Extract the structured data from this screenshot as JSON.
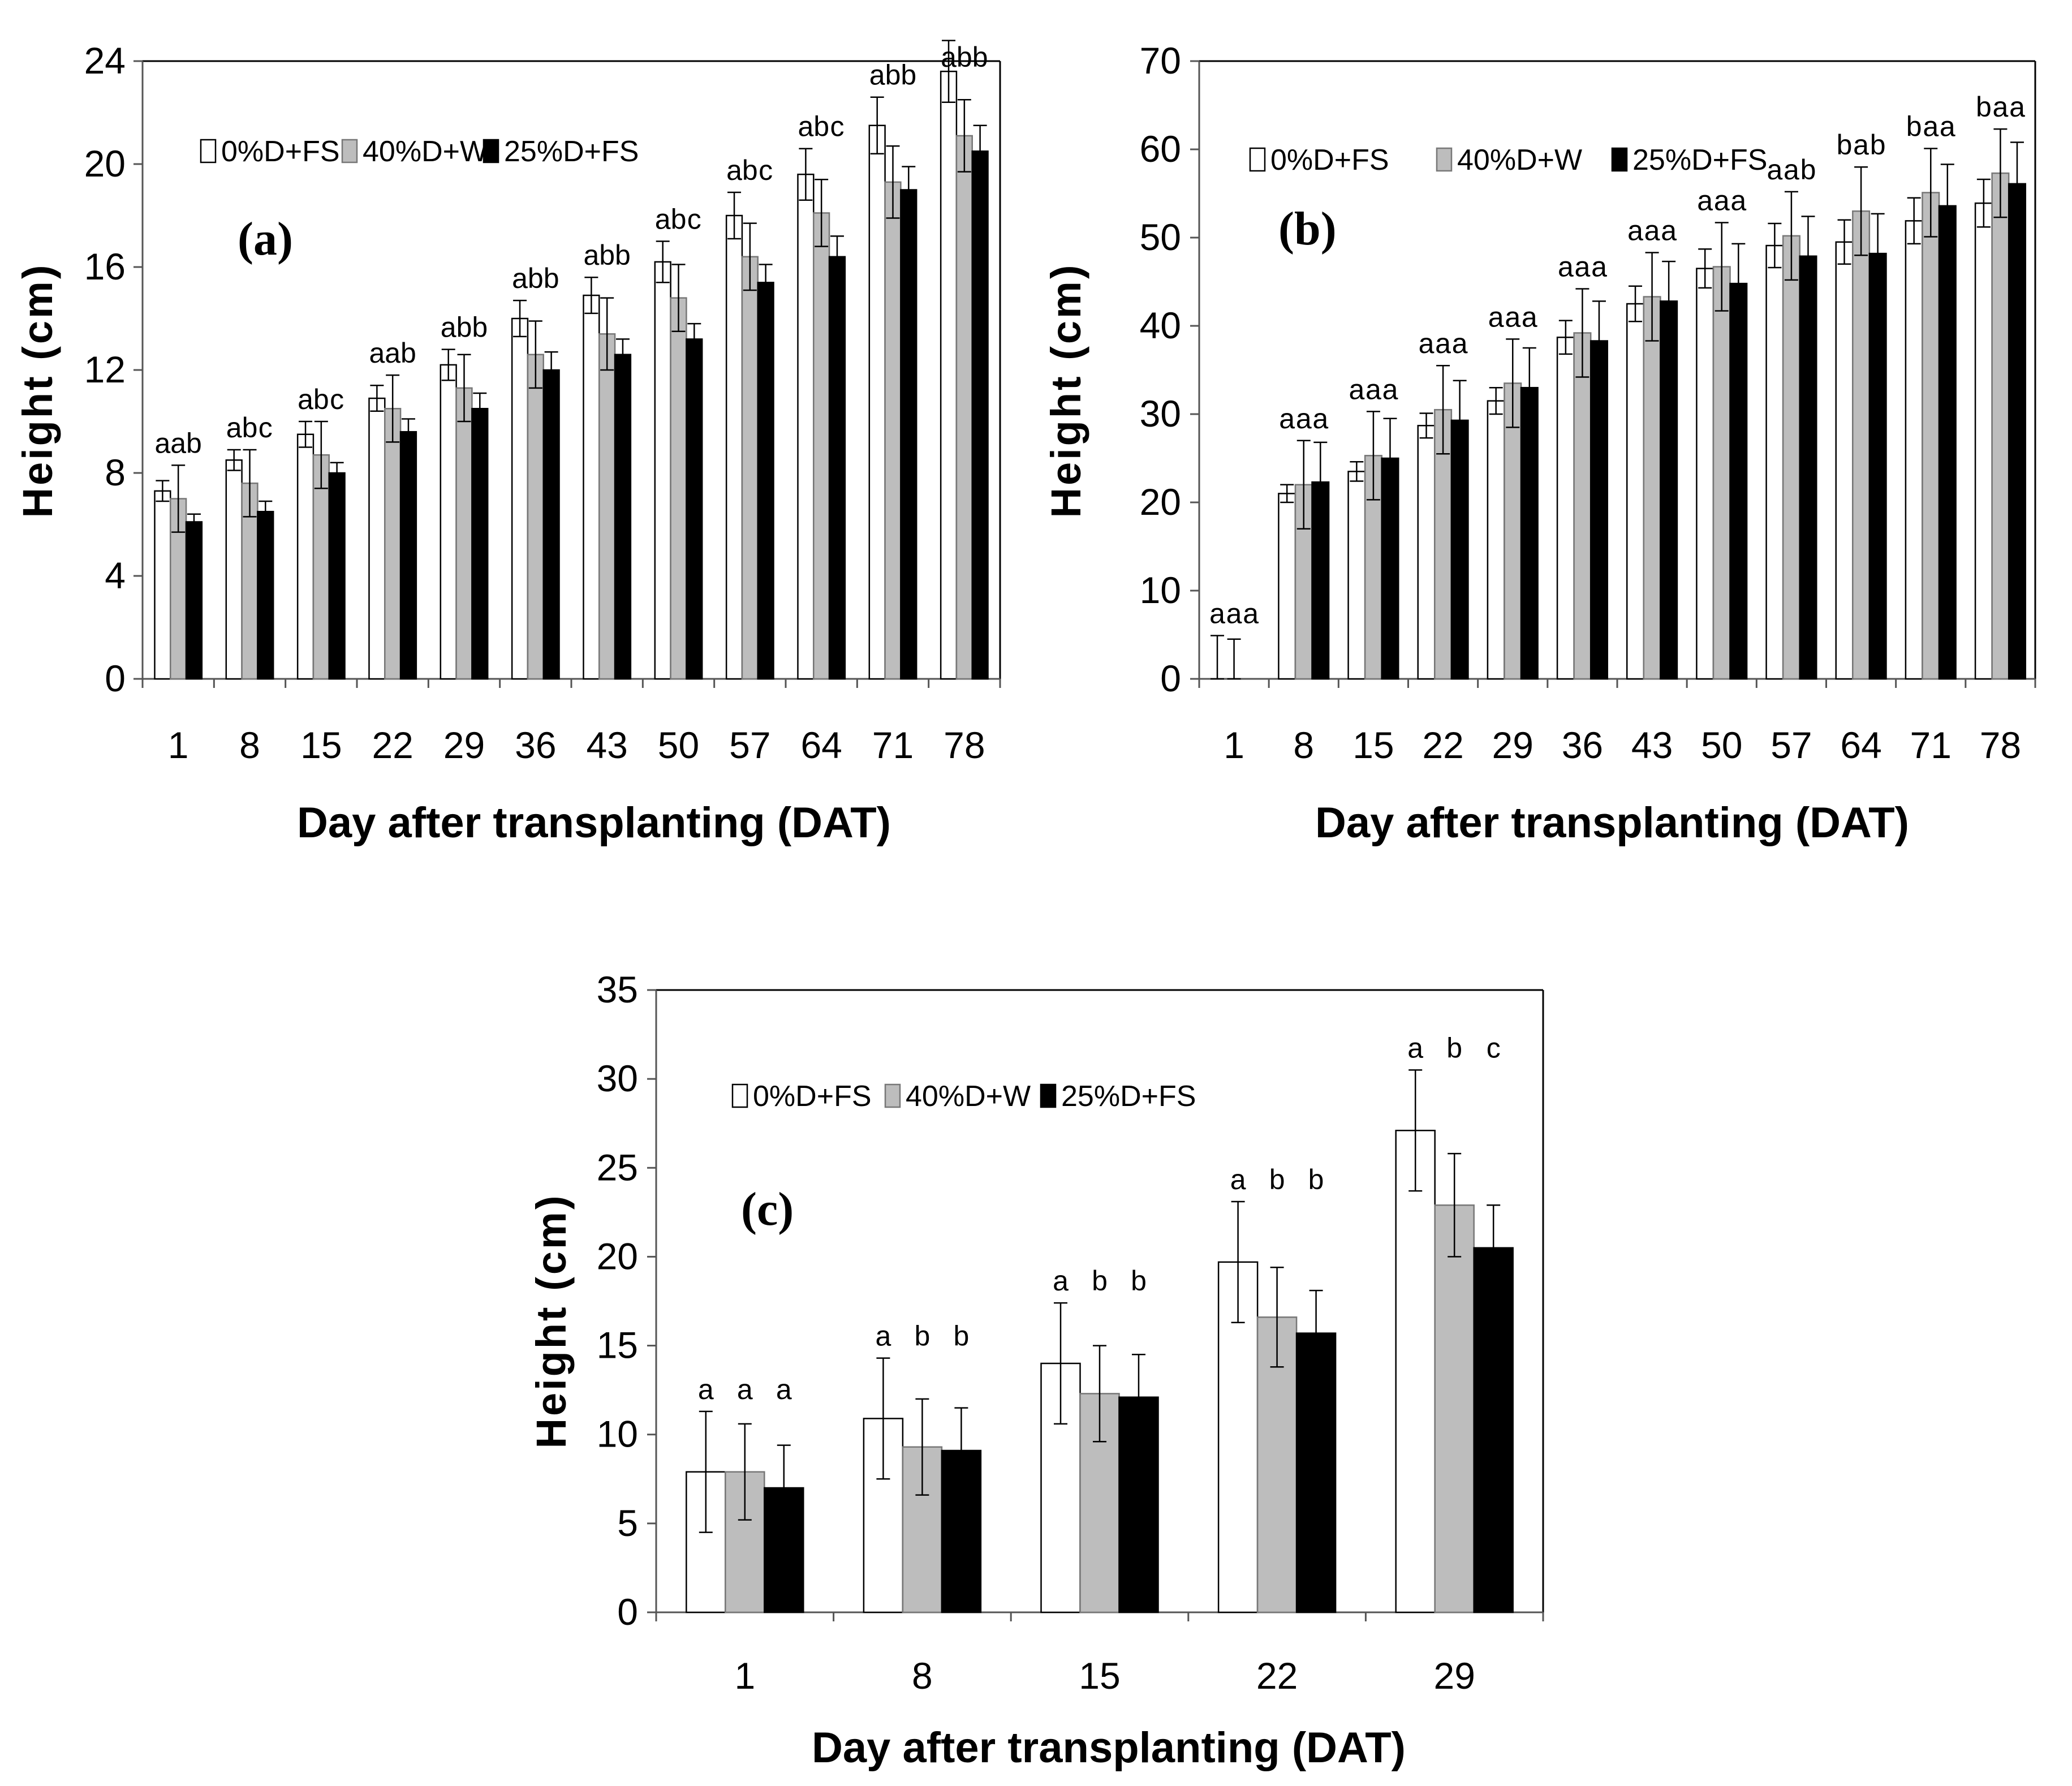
{
  "figure_title": "",
  "colors": {
    "series1": "#ffffff",
    "series2": "#bdbdbd",
    "series3": "#000000",
    "stroke": "#000000"
  },
  "chart_data": [
    {
      "id": "a",
      "type": "bar",
      "panel_label": "(a)",
      "ylabel": "Height (cm)",
      "xlabel": "Day after transplanting (DAT)",
      "ylim": [
        0,
        24
      ],
      "yticks": [
        0,
        4,
        8,
        12,
        16,
        20,
        24
      ],
      "categories": [
        "1",
        "8",
        "15",
        "22",
        "29",
        "36",
        "43",
        "50",
        "57",
        "64",
        "71",
        "78"
      ],
      "series": [
        {
          "name": "0%D+FS",
          "values": [
            7.3,
            8.5,
            9.5,
            10.9,
            12.2,
            14.0,
            14.9,
            16.2,
            18.0,
            19.6,
            21.5,
            23.6
          ],
          "errors": [
            0.4,
            0.4,
            0.5,
            0.5,
            0.6,
            0.7,
            0.7,
            0.8,
            0.9,
            1.0,
            1.1,
            1.2
          ]
        },
        {
          "name": "40%D+W",
          "values": [
            7.0,
            7.6,
            8.7,
            10.5,
            11.3,
            12.6,
            13.4,
            14.8,
            16.4,
            18.1,
            19.3,
            21.1
          ],
          "errors": [
            1.3,
            1.3,
            1.3,
            1.3,
            1.3,
            1.3,
            1.4,
            1.3,
            1.3,
            1.3,
            1.4,
            1.4
          ]
        },
        {
          "name": "25%D+FS",
          "values": [
            6.1,
            6.5,
            8.0,
            9.6,
            10.5,
            12.0,
            12.6,
            13.2,
            15.4,
            16.4,
            19.0,
            20.5
          ],
          "errors": [
            0.3,
            0.4,
            0.4,
            0.5,
            0.6,
            0.7,
            0.6,
            0.6,
            0.7,
            0.8,
            0.9,
            1.0
          ]
        }
      ],
      "annotations": [
        "a a b",
        "a b c",
        "a b c",
        "a a b",
        "a b b",
        "a b b",
        "a b b",
        "a b c",
        "a b c",
        "a b c",
        "a b b",
        "a b b"
      ]
    },
    {
      "id": "b",
      "type": "bar",
      "panel_label": "(b)",
      "ylabel": "Height (cm)",
      "xlabel": "Day after transplanting (DAT)",
      "ylim": [
        0,
        70
      ],
      "yticks": [
        0,
        10,
        20,
        30,
        40,
        50,
        60,
        70
      ],
      "categories": [
        "1",
        "8",
        "15",
        "22",
        "29",
        "36",
        "43",
        "50",
        "57",
        "64",
        "71",
        "78"
      ],
      "series": [
        {
          "name": "0%D+FS",
          "values": [
            0,
            21.0,
            23.5,
            28.7,
            31.5,
            38.7,
            42.5,
            46.5,
            49.1,
            49.5,
            51.9,
            53.9
          ],
          "errors": [
            4.9,
            1.0,
            1.1,
            1.4,
            1.5,
            1.9,
            2.0,
            2.2,
            2.5,
            2.5,
            2.6,
            2.7
          ]
        },
        {
          "name": "40%D+W",
          "values": [
            0,
            22.0,
            25.3,
            30.5,
            33.5,
            39.2,
            43.3,
            46.7,
            50.2,
            53.0,
            55.1,
            57.3
          ],
          "errors": [
            4.5,
            5.0,
            5.0,
            5.0,
            5.0,
            5.0,
            5.0,
            5.0,
            5.0,
            5.0,
            5.0,
            5.0
          ]
        },
        {
          "name": "25%D+FS",
          "values": [
            0,
            22.3,
            25.0,
            29.3,
            33.0,
            38.3,
            42.8,
            44.8,
            47.9,
            48.2,
            53.6,
            56.1
          ],
          "errors": [
            0,
            4.5,
            4.5,
            4.5,
            4.5,
            4.5,
            4.5,
            4.5,
            4.5,
            4.5,
            4.7,
            4.7
          ]
        }
      ],
      "annotations": [
        "a a a",
        "a a a",
        "a a a",
        "a a a",
        "a a a",
        "a a a",
        "a a a",
        "a a a",
        "a a b",
        "b a b",
        "b a a",
        "b a a"
      ]
    },
    {
      "id": "c",
      "type": "bar",
      "panel_label": "(c)",
      "ylabel": "Height (cm)",
      "xlabel": "Day after transplanting (DAT)",
      "ylim": [
        0,
        35
      ],
      "yticks": [
        0,
        5,
        10,
        15,
        20,
        25,
        30,
        35
      ],
      "categories": [
        "1",
        "8",
        "15",
        "22",
        "29"
      ],
      "series": [
        {
          "name": "0%D+FS",
          "values": [
            7.9,
            10.9,
            14.0,
            19.7,
            27.1
          ],
          "errors": [
            3.4,
            3.4,
            3.4,
            3.4,
            3.4
          ]
        },
        {
          "name": "40%D+W",
          "values": [
            7.9,
            9.3,
            12.3,
            16.6,
            22.9
          ],
          "errors": [
            2.7,
            2.7,
            2.7,
            2.8,
            2.9
          ]
        },
        {
          "name": "25%D+FS",
          "values": [
            7.0,
            9.1,
            12.1,
            15.7,
            20.5
          ],
          "errors": [
            2.4,
            2.4,
            2.4,
            2.4,
            2.4
          ]
        }
      ],
      "annotations": [
        "a a a",
        "a b b",
        "a b b",
        "a b b",
        "a b c"
      ]
    }
  ]
}
